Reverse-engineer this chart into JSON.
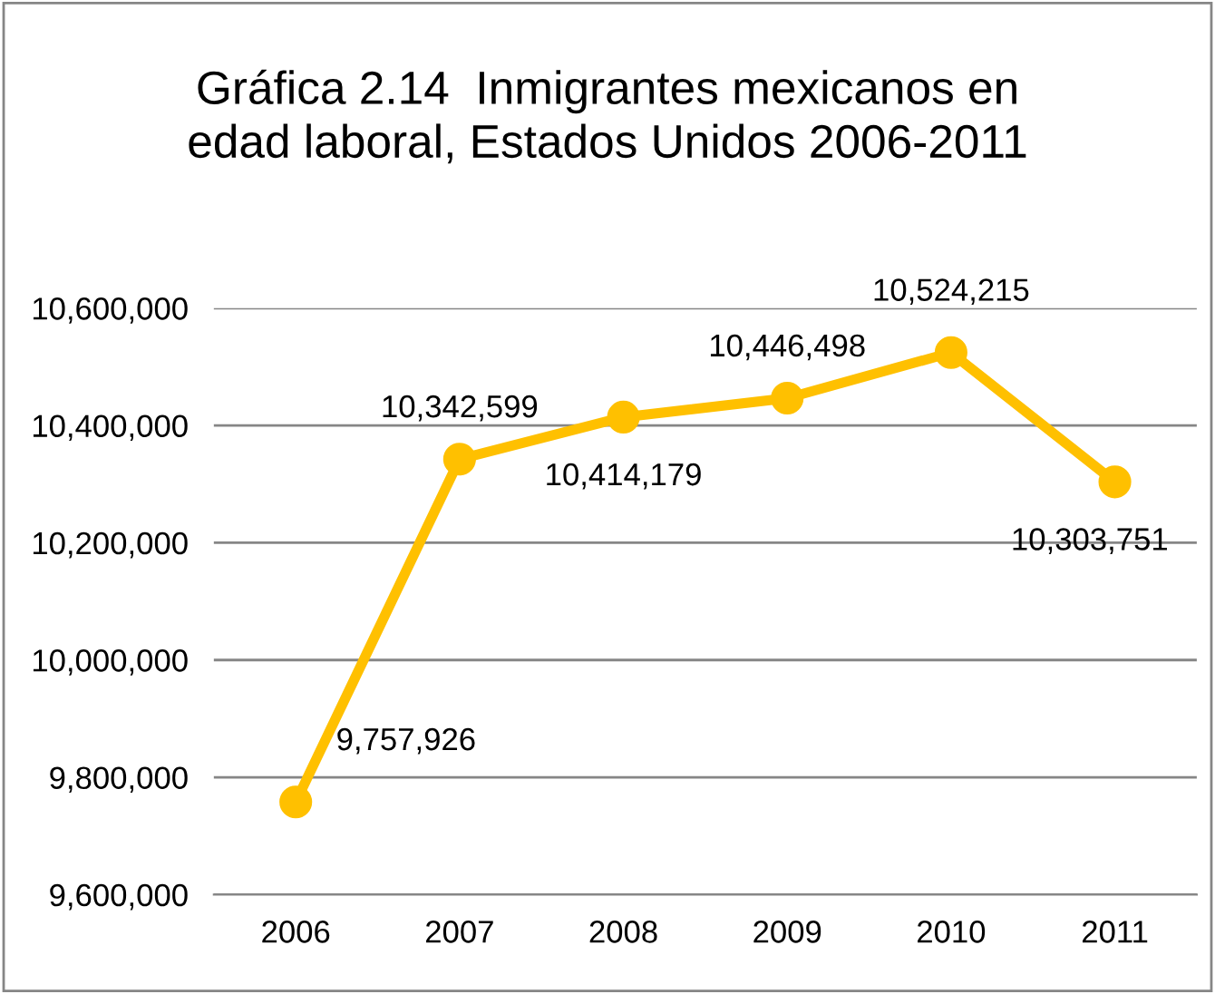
{
  "chart_data": {
    "type": "line",
    "title": "Gráfica 2.14  Inmigrantes mexicanos en\nedad laboral, Estados Unidos 2006-2011",
    "categories": [
      "2006",
      "2007",
      "2008",
      "2009",
      "2010",
      "2011"
    ],
    "values": [
      9757926,
      10342599,
      10414179,
      10446498,
      10524215,
      10303751
    ],
    "color": "#ffc000",
    "marker": "circle",
    "line_style": "solid",
    "data_labels": true,
    "value_labels": [
      "9,757,926",
      "10,342,599",
      "10,414,179",
      "10,446,498",
      "10,524,215",
      "10,303,751"
    ],
    "ylim": [
      9600000,
      10600000
    ],
    "yticks": [
      {
        "value": 9600000,
        "label": "9,600,000"
      },
      {
        "value": 9800000,
        "label": "9,800,000"
      },
      {
        "value": 10000000,
        "label": "10,000,000"
      },
      {
        "value": 10200000,
        "label": "10,200,000"
      },
      {
        "value": 10400000,
        "label": "10,400,000"
      },
      {
        "value": 10600000,
        "label": "10,600,000"
      }
    ],
    "grid": "y",
    "legend": false
  }
}
